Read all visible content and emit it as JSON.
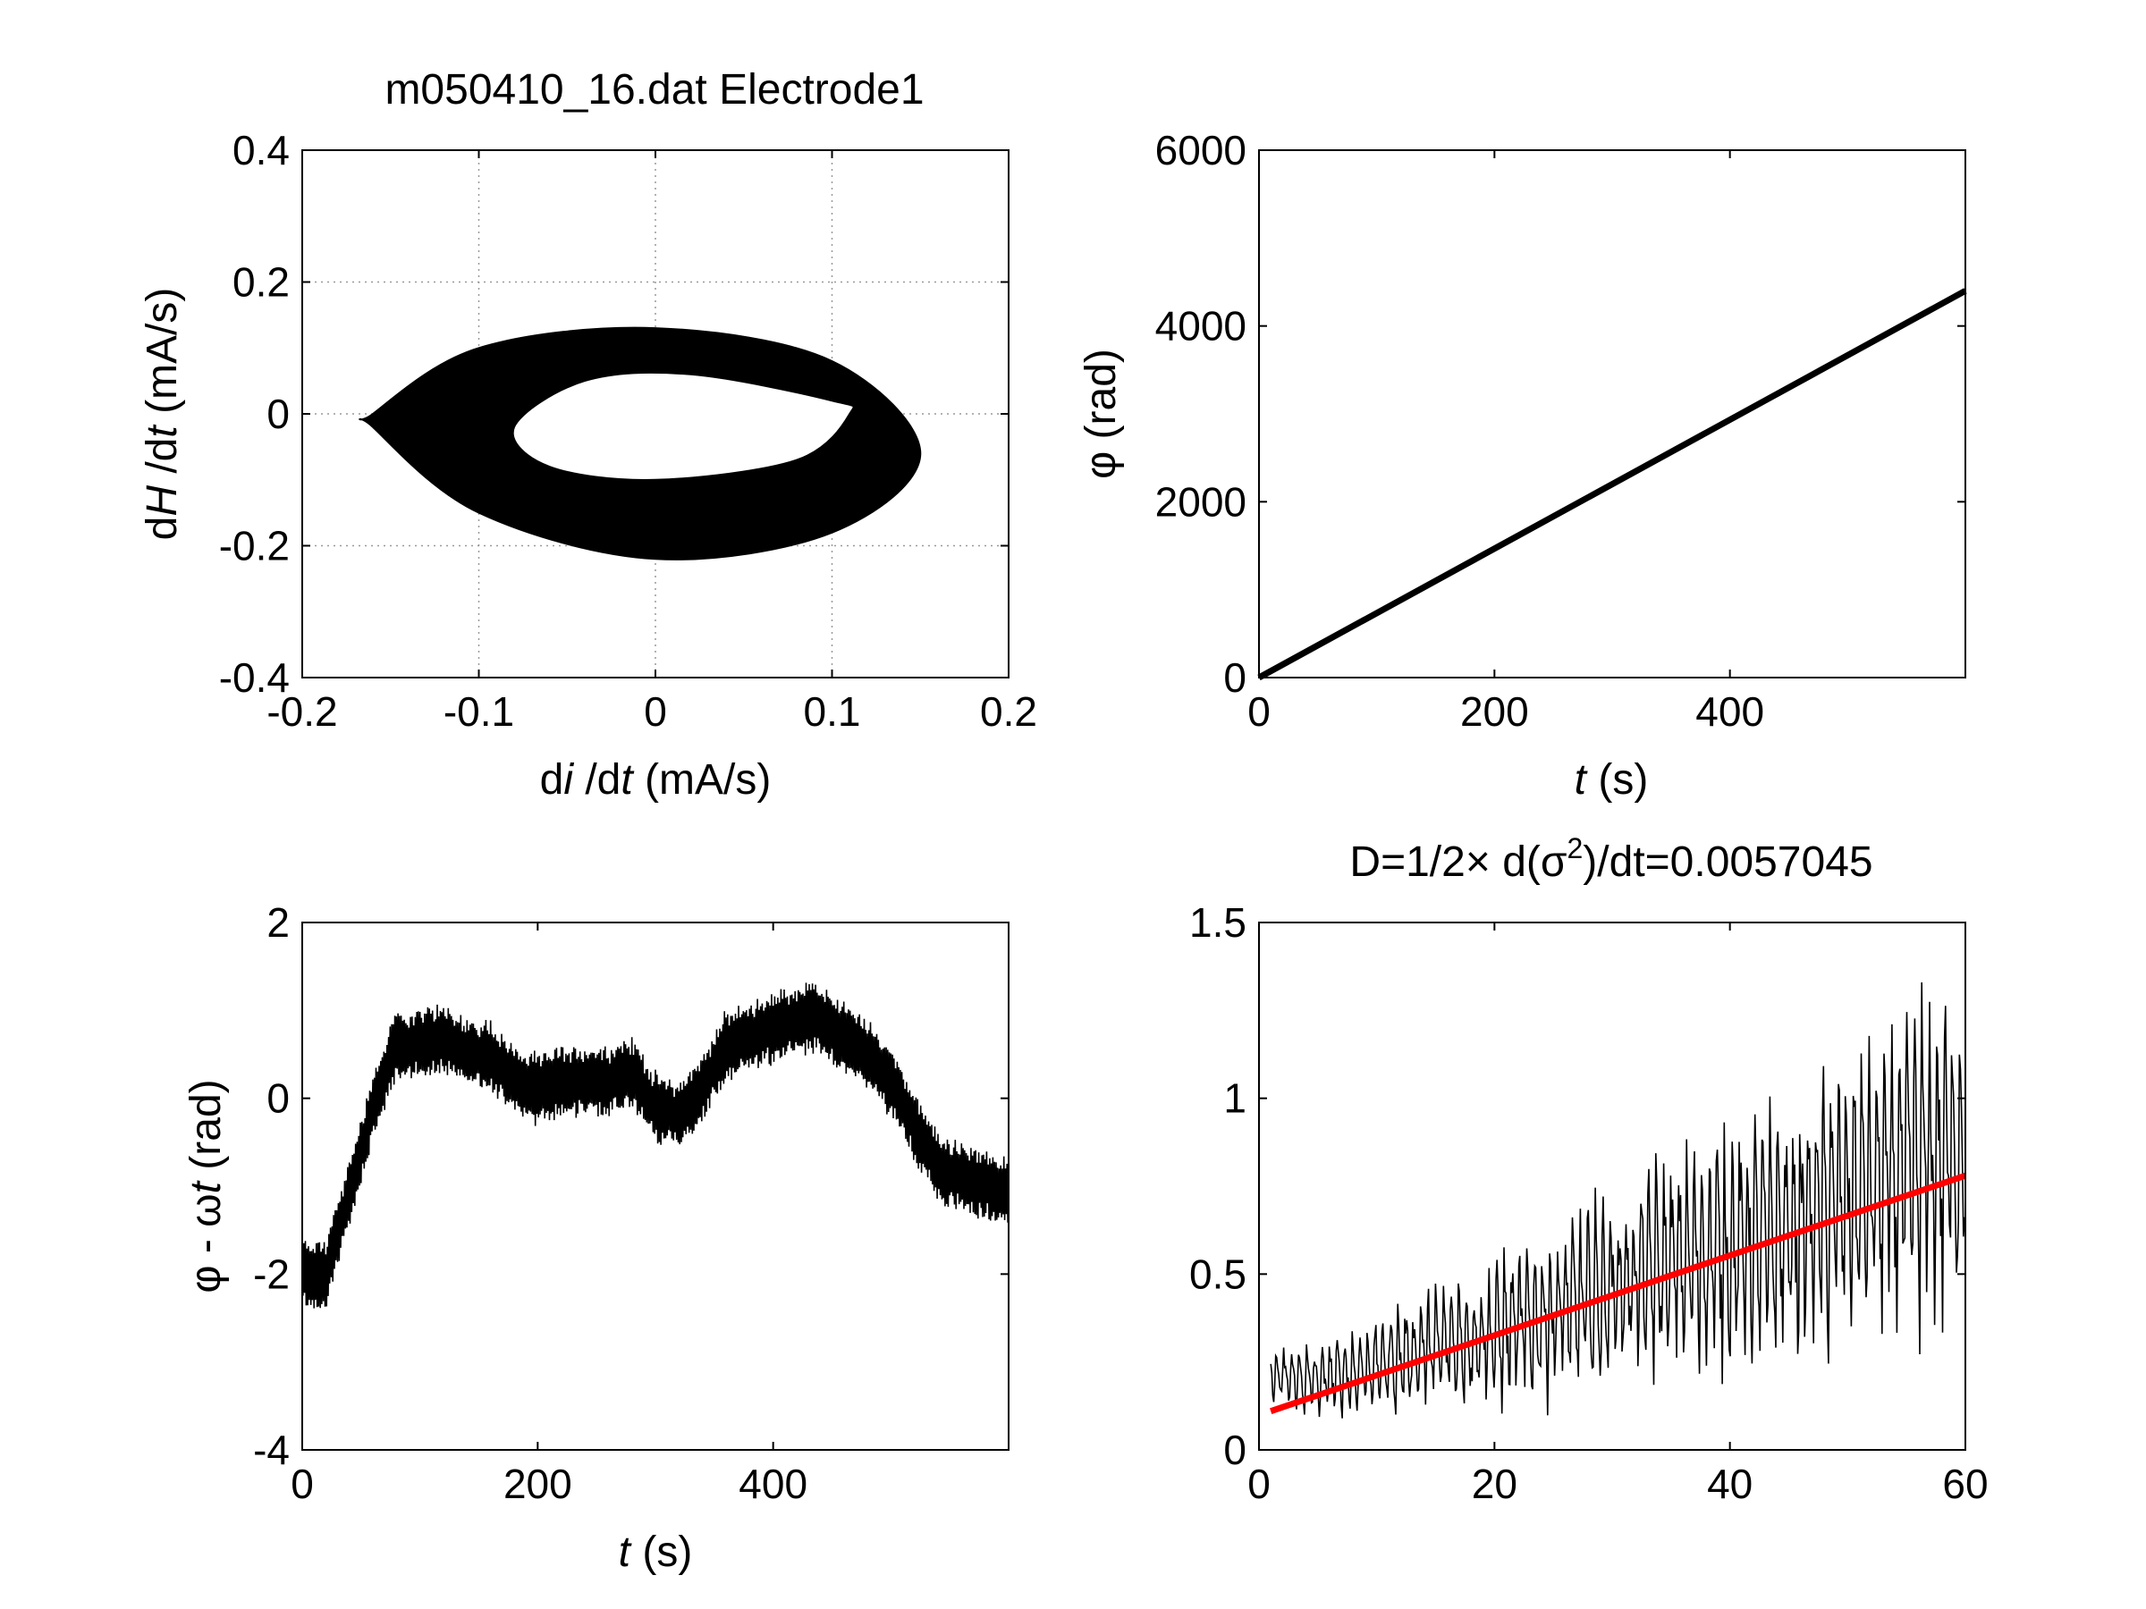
{
  "chart_data": [
    {
      "type": "scatter",
      "title": "m050410_16.dat Electrode1",
      "xlabel_parts": [
        "d",
        "i",
        " /d",
        "t",
        " (mA/s)"
      ],
      "ylabel_parts": [
        "d",
        "H",
        " /d",
        "t",
        " (mA/s)"
      ],
      "xlim": [
        -0.2,
        0.2
      ],
      "ylim": [
        -0.4,
        0.4
      ],
      "xticks": [
        "-0.2",
        "-0.1",
        "0",
        "0.1",
        "0.2"
      ],
      "yticks": [
        "-0.4",
        "-0.2",
        "0",
        "0.2",
        "0.4"
      ],
      "grid": true,
      "series": [
        {
          "color": "#000000",
          "description_points_outer": [
            [
              -0.16,
              0.0
            ],
            [
              -0.1,
              0.1
            ],
            [
              0.0,
              0.13
            ],
            [
              0.1,
              0.08
            ],
            [
              0.15,
              -0.06
            ],
            [
              0.1,
              -0.18
            ],
            [
              0.0,
              -0.22
            ],
            [
              -0.1,
              -0.15
            ],
            [
              -0.16,
              -0.02
            ]
          ],
          "description_points_inner": [
            [
              -0.08,
              -0.02
            ],
            [
              -0.04,
              0.05
            ],
            [
              0.02,
              0.06
            ],
            [
              0.1,
              0.02
            ],
            [
              0.11,
              0.0
            ],
            [
              0.08,
              -0.07
            ],
            [
              0.0,
              -0.1
            ],
            [
              -0.06,
              -0.08
            ]
          ]
        }
      ]
    },
    {
      "type": "line",
      "title": "",
      "xlabel_parts": [
        "t",
        " (s)"
      ],
      "ylabel": "φ (rad)",
      "xlim": [
        0,
        600
      ],
      "ylim": [
        0,
        6000
      ],
      "xticks": [
        "0",
        "200",
        "400"
      ],
      "yticks": [
        "0",
        "2000",
        "4000",
        "6000"
      ],
      "grid": false,
      "series": [
        {
          "color": "#000000",
          "x": [
            0,
            600
          ],
          "y": [
            0,
            4400
          ]
        }
      ]
    },
    {
      "type": "line",
      "title": "",
      "xlabel_parts": [
        "t",
        " (s)"
      ],
      "ylabel_parts": [
        "φ - ω",
        "t",
        " (rad)"
      ],
      "xlim": [
        0,
        600
      ],
      "ylim": [
        -4,
        2
      ],
      "xticks": [
        "0",
        "200",
        "400"
      ],
      "yticks": [
        "-4",
        "-2",
        "0",
        "2"
      ],
      "grid": false,
      "series": [
        {
          "color": "#000000",
          "x": [
            0,
            20,
            40,
            60,
            80,
            100,
            120,
            140,
            160,
            180,
            200,
            220,
            240,
            260,
            280,
            300,
            320,
            340,
            360,
            380,
            400,
            420,
            440,
            460,
            480,
            500,
            520,
            540,
            560,
            580,
            600
          ],
          "y": [
            -2.0,
            -2.0,
            -1.1,
            -0.1,
            0.6,
            0.6,
            0.7,
            0.5,
            0.5,
            0.2,
            0.1,
            0.2,
            0.2,
            0.2,
            0.3,
            -0.1,
            -0.2,
            0.1,
            0.6,
            0.7,
            0.8,
            0.9,
            0.9,
            0.7,
            0.5,
            0.2,
            -0.3,
            -0.8,
            -0.9,
            -1.0,
            -1.1
          ]
        }
      ]
    },
    {
      "type": "line",
      "title_parts": [
        "D=1/2× d(σ",
        "2",
        ")/dt=0.0057045"
      ],
      "xlabel": "",
      "ylabel": "",
      "xlim": [
        0,
        60
      ],
      "ylim": [
        0,
        1.5
      ],
      "xticks": [
        "0",
        "20",
        "40",
        "60"
      ],
      "yticks": [
        "0",
        "0.5",
        "1",
        "1.5"
      ],
      "grid": false,
      "series": [
        {
          "color": "#000000",
          "x": [
            1,
            5,
            10,
            15,
            20,
            25,
            30,
            35,
            40,
            45,
            50,
            55,
            60
          ],
          "y": [
            0.2,
            0.18,
            0.22,
            0.27,
            0.3,
            0.35,
            0.42,
            0.48,
            0.52,
            0.56,
            0.65,
            0.72,
            0.8
          ]
        },
        {
          "color": "#ff0000",
          "x": [
            1,
            60
          ],
          "y": [
            0.11,
            0.78
          ]
        }
      ]
    }
  ]
}
